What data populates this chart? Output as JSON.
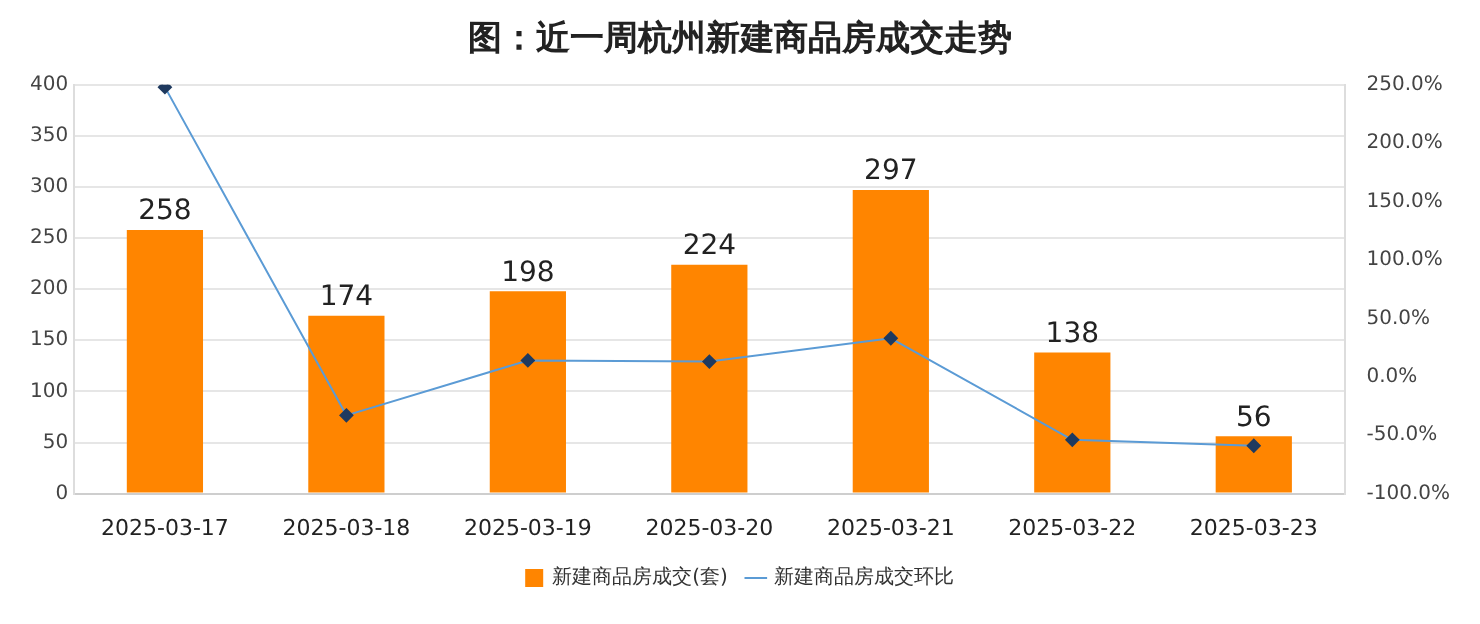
{
  "chart_data": {
    "type": "bar",
    "title": "图：近一周杭州新建商品房成交走势",
    "categories": [
      "2025-03-17",
      "2025-03-18",
      "2025-03-19",
      "2025-03-20",
      "2025-03-21",
      "2025-03-22",
      "2025-03-23"
    ],
    "series": [
      {
        "name": "新建商品房成交(套)",
        "color": "#ff8500",
        "values": [
          258,
          174,
          198,
          224,
          297,
          138,
          56
        ],
        "value_labels": [
          "258",
          "174",
          "198",
          "224",
          "297",
          "138",
          "56"
        ]
      },
      {
        "name": "新建商品房成交环比",
        "type": "line",
        "axis": "y2",
        "color": "#5b9bd5",
        "marker": "diamond",
        "values": [
          248,
          -33,
          14,
          13,
          33,
          -54,
          -59
        ]
      }
    ],
    "ylim": [
      0,
      400
    ],
    "yticks": [
      0,
      50,
      100,
      150,
      200,
      250,
      300,
      350,
      400
    ],
    "y2lim": [
      -100,
      250
    ],
    "y2ticks": [
      {
        "value": -100,
        "label": "-100.0%"
      },
      {
        "value": -50,
        "label": "-50.0%"
      },
      {
        "value": 0,
        "label": "0.0%"
      },
      {
        "value": 50,
        "label": "50.0%"
      },
      {
        "value": 100,
        "label": "100.0%"
      },
      {
        "value": 150,
        "label": "150.0%"
      },
      {
        "value": 200,
        "label": "200.0%"
      },
      {
        "value": 250,
        "label": "250.0%"
      }
    ],
    "grid": "y",
    "legend": "bottom"
  }
}
